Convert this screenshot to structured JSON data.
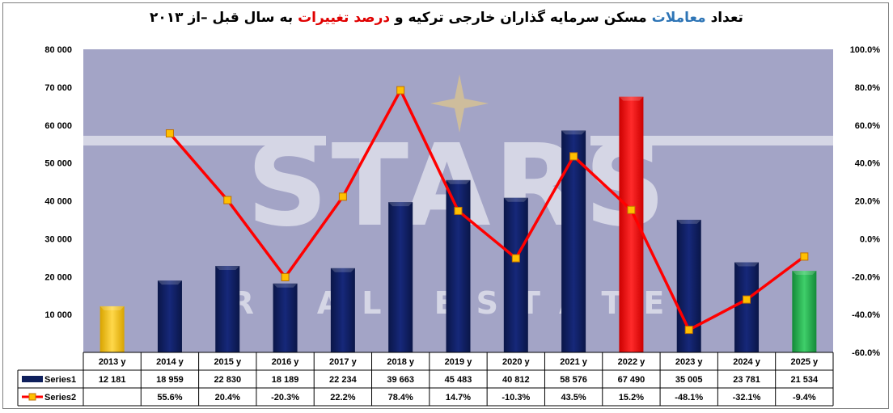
{
  "title": {
    "part1": "تعداد ",
    "part2": "معاملات",
    "part3": " مسکن سرمایه گذاران خارجی ترکیه و ",
    "part4": "درصد تغییرات",
    "part5": " به سال قبل –از ۲۰۱۳"
  },
  "watermark": {
    "text": "STARS",
    "subtext": "REAL ESTATE"
  },
  "colors": {
    "plot_bg": "#a3a4c6",
    "bar_default": "#0e1f5c",
    "bar_2013": "#f2c200",
    "bar_2022": "#ff0000",
    "bar_2025": "#1faa4a",
    "line": "#ff0000",
    "marker_fill": "#ffc000",
    "marker_stroke": "#c07000"
  },
  "chart_data": {
    "type": "bar",
    "categories": [
      "2013 y",
      "2014 y",
      "2015 y",
      "2016 y",
      "2017 y",
      "2018 y",
      "2019 y",
      "2020 y",
      "2021 y",
      "2022 y",
      "2023 y",
      "2024 y",
      "2025 y"
    ],
    "series": [
      {
        "name": "Series1",
        "type": "bar",
        "axis": "left",
        "values": [
          12181,
          18959,
          22830,
          18189,
          22234,
          39663,
          45483,
          40812,
          58576,
          67490,
          35005,
          23781,
          21534
        ],
        "labels": [
          "12 181",
          "18 959",
          "22 830",
          "18 189",
          "22 234",
          "39 663",
          "45 483",
          "40 812",
          "58 576",
          "67 490",
          "35 005",
          "23 781",
          "21 534"
        ]
      },
      {
        "name": "Series2",
        "type": "line",
        "axis": "right",
        "values": [
          null,
          55.6,
          20.4,
          -20.3,
          22.2,
          78.4,
          14.7,
          -10.3,
          43.5,
          15.2,
          -48.1,
          -32.1,
          -9.4
        ],
        "labels": [
          "",
          "55.6%",
          "20.4%",
          "-20.3%",
          "22.2%",
          "78.4%",
          "14.7%",
          "-10.3%",
          "43.5%",
          "15.2%",
          "-48.1%",
          "-32.1%",
          "-9.4%"
        ]
      }
    ],
    "y_left": {
      "ylim": [
        0,
        80000
      ],
      "ticks": [
        "10 000",
        "20 000",
        "30 000",
        "40 000",
        "50 000",
        "60 000",
        "70 000",
        "80 000"
      ],
      "tick_values": [
        10000,
        20000,
        30000,
        40000,
        50000,
        60000,
        70000,
        80000
      ]
    },
    "y_right": {
      "ylim": [
        -60,
        100
      ],
      "ticks": [
        "-60.0%",
        "-40.0%",
        "-20.0%",
        "0.0%",
        "20.0%",
        "40.0%",
        "60.0%",
        "80.0%",
        "100.0%"
      ],
      "tick_values": [
        -60,
        -40,
        -20,
        0,
        20,
        40,
        60,
        80,
        100
      ]
    },
    "data_table": true,
    "grid": false
  }
}
